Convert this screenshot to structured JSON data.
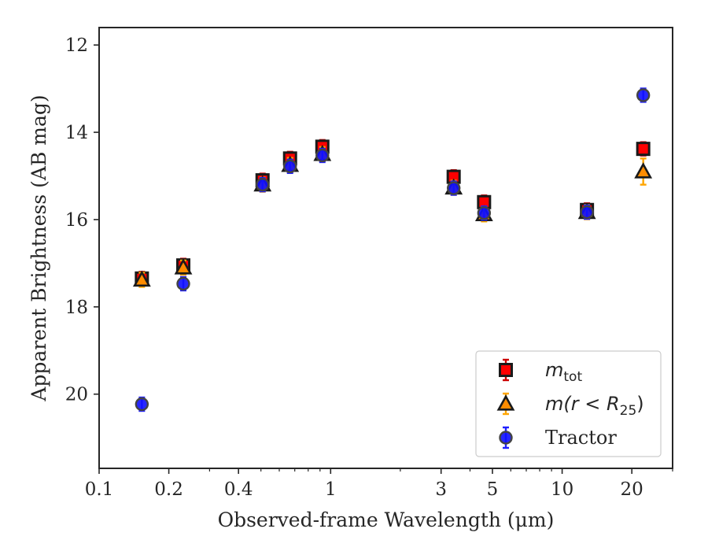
{
  "chart_data": {
    "type": "scatter",
    "xlabel": "Observed-frame Wavelength (μm)",
    "ylabel": "Apparent Brightness (AB mag)",
    "x_scale": "log",
    "xlim": [
      0.1,
      30
    ],
    "ylim": [
      21.7,
      11.6
    ],
    "y_inverted": true,
    "x_ticks": [
      {
        "value": 0.1,
        "label": "0.1"
      },
      {
        "value": 0.2,
        "label": "0.2"
      },
      {
        "value": 0.4,
        "label": "0.4"
      },
      {
        "value": 1,
        "label": "1"
      },
      {
        "value": 3,
        "label": "3"
      },
      {
        "value": 5,
        "label": "5"
      },
      {
        "value": 10,
        "label": "10"
      },
      {
        "value": 20,
        "label": "20"
      }
    ],
    "x_minor_ticks": [
      0.3,
      0.5,
      0.6,
      0.7,
      0.8,
      0.9,
      2,
      4,
      6,
      7,
      8,
      9,
      30
    ],
    "y_ticks": [
      {
        "value": 12,
        "label": "12"
      },
      {
        "value": 14,
        "label": "14"
      },
      {
        "value": 16,
        "label": "16"
      },
      {
        "value": 18,
        "label": "18"
      },
      {
        "value": 20,
        "label": "20"
      }
    ],
    "grid": false,
    "legend_position": "lower-right",
    "series": [
      {
        "name": "m_tot",
        "legend_label": {
          "base": "m",
          "sub": "tot"
        },
        "marker": "square",
        "color": "#ff0000",
        "edge_color": "#1a1a1a",
        "error_color": "#cc0000",
        "points": [
          {
            "x": 0.153,
            "y": 17.35,
            "err": 0.05
          },
          {
            "x": 0.231,
            "y": 17.05,
            "err": 0.05
          },
          {
            "x": 0.508,
            "y": 15.1,
            "err": 0.05
          },
          {
            "x": 0.668,
            "y": 14.6,
            "err": 0.05
          },
          {
            "x": 0.921,
            "y": 14.33,
            "err": 0.05
          },
          {
            "x": 3.4,
            "y": 15.02,
            "err": 0.05
          },
          {
            "x": 4.6,
            "y": 15.6,
            "err": 0.05
          },
          {
            "x": 12.8,
            "y": 15.78,
            "err": 0.05
          },
          {
            "x": 22.4,
            "y": 14.38,
            "err": 0.05
          }
        ]
      },
      {
        "name": "m(r < R_25)",
        "legend_label": {
          "base": "m(r < R",
          "sub": "25",
          "tail": ")"
        },
        "marker": "triangle",
        "color": "#ff8c00",
        "edge_color": "#1a1a1a",
        "error_color": "#ffa500",
        "points": [
          {
            "x": 0.153,
            "y": 17.38,
            "err": 0.05
          },
          {
            "x": 0.231,
            "y": 17.1,
            "err": 0.05
          },
          {
            "x": 0.508,
            "y": 15.2,
            "err": 0.05
          },
          {
            "x": 0.668,
            "y": 14.75,
            "err": 0.05
          },
          {
            "x": 0.921,
            "y": 14.5,
            "err": 0.05
          },
          {
            "x": 3.4,
            "y": 15.27,
            "err": 0.05
          },
          {
            "x": 4.6,
            "y": 15.88,
            "err": 0.05
          },
          {
            "x": 12.8,
            "y": 15.83,
            "err": 0.05
          },
          {
            "x": 22.4,
            "y": 14.9,
            "err": 0.3
          }
        ]
      },
      {
        "name": "Tractor",
        "legend_label": {
          "base": "Tractor"
        },
        "marker": "circle",
        "color": "#1010ff",
        "edge_color": "#444444",
        "error_color": "#2020ff",
        "points": [
          {
            "x": 0.153,
            "y": 20.23,
            "err": 0.05
          },
          {
            "x": 0.231,
            "y": 17.47,
            "err": 0.05
          },
          {
            "x": 0.508,
            "y": 15.2,
            "err": 0.05
          },
          {
            "x": 0.668,
            "y": 14.78,
            "err": 0.05
          },
          {
            "x": 0.921,
            "y": 14.53,
            "err": 0.05
          },
          {
            "x": 3.4,
            "y": 15.28,
            "err": 0.05
          },
          {
            "x": 4.6,
            "y": 15.85,
            "err": 0.05
          },
          {
            "x": 12.8,
            "y": 15.83,
            "err": 0.05
          },
          {
            "x": 22.4,
            "y": 13.15,
            "err": 0.05
          }
        ]
      }
    ]
  }
}
